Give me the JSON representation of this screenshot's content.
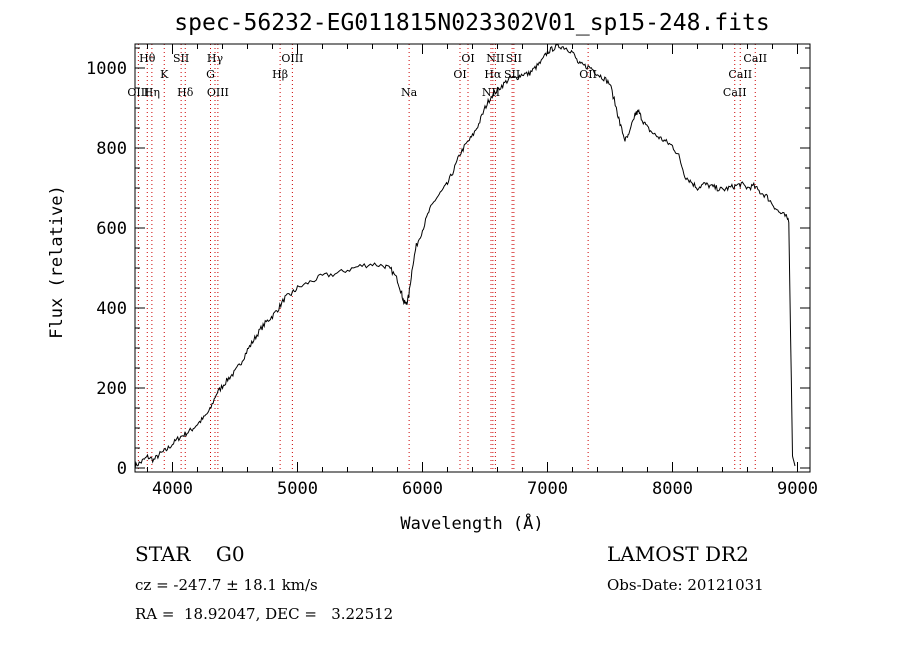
{
  "chart_data": {
    "type": "line",
    "title": "spec-56232-EG011815N023302V01_sp15-248.fits",
    "xlabel": "Wavelength (Å)",
    "ylabel": "Flux (relative)",
    "xlim": [
      3700,
      9100
    ],
    "ylim": [
      -10,
      1060
    ],
    "xticks": [
      4000,
      5000,
      6000,
      7000,
      8000,
      9000
    ],
    "yticks": [
      0,
      200,
      400,
      600,
      800,
      1000
    ],
    "grid": false,
    "series": [
      {
        "values": [
          [
            3700,
            5
          ],
          [
            3750,
            15
          ],
          [
            3800,
            28
          ],
          [
            3850,
            20
          ],
          [
            3900,
            35
          ],
          [
            3950,
            45
          ],
          [
            4000,
            60
          ],
          [
            4050,
            75
          ],
          [
            4100,
            85
          ],
          [
            4150,
            95
          ],
          [
            4200,
            110
          ],
          [
            4250,
            125
          ],
          [
            4300,
            145
          ],
          [
            4350,
            185
          ],
          [
            4400,
            205
          ],
          [
            4450,
            225
          ],
          [
            4500,
            240
          ],
          [
            4550,
            265
          ],
          [
            4600,
            295
          ],
          [
            4650,
            320
          ],
          [
            4700,
            345
          ],
          [
            4750,
            365
          ],
          [
            4800,
            380
          ],
          [
            4850,
            400
          ],
          [
            4900,
            425
          ],
          [
            4950,
            435
          ],
          [
            5000,
            450
          ],
          [
            5100,
            465
          ],
          [
            5200,
            480
          ],
          [
            5300,
            485
          ],
          [
            5400,
            495
          ],
          [
            5500,
            505
          ],
          [
            5600,
            510
          ],
          [
            5700,
            505
          ],
          [
            5750,
            495
          ],
          [
            5800,
            470
          ],
          [
            5830,
            440
          ],
          [
            5850,
            415
          ],
          [
            5870,
            410
          ],
          [
            5890,
            430
          ],
          [
            5920,
            505
          ],
          [
            5950,
            555
          ],
          [
            6000,
            595
          ],
          [
            6050,
            640
          ],
          [
            6100,
            670
          ],
          [
            6150,
            690
          ],
          [
            6200,
            710
          ],
          [
            6250,
            745
          ],
          [
            6300,
            785
          ],
          [
            6350,
            810
          ],
          [
            6400,
            830
          ],
          [
            6450,
            860
          ],
          [
            6500,
            900
          ],
          [
            6550,
            930
          ],
          [
            6600,
            945
          ],
          [
            6650,
            960
          ],
          [
            6700,
            975
          ],
          [
            6750,
            975
          ],
          [
            6800,
            985
          ],
          [
            6850,
            985
          ],
          [
            6900,
            1000
          ],
          [
            6950,
            1015
          ],
          [
            7000,
            1040
          ],
          [
            7050,
            1050
          ],
          [
            7100,
            1055
          ],
          [
            7150,
            1050
          ],
          [
            7200,
            1040
          ],
          [
            7250,
            1010
          ],
          [
            7300,
            1005
          ],
          [
            7350,
            1000
          ],
          [
            7400,
            985
          ],
          [
            7450,
            975
          ],
          [
            7500,
            960
          ],
          [
            7550,
            900
          ],
          [
            7580,
            860
          ],
          [
            7620,
            820
          ],
          [
            7650,
            830
          ],
          [
            7700,
            885
          ],
          [
            7730,
            890
          ],
          [
            7760,
            870
          ],
          [
            7800,
            850
          ],
          [
            7850,
            835
          ],
          [
            7900,
            825
          ],
          [
            7950,
            815
          ],
          [
            8000,
            805
          ],
          [
            8050,
            780
          ],
          [
            8100,
            730
          ],
          [
            8150,
            715
          ],
          [
            8200,
            700
          ],
          [
            8250,
            710
          ],
          [
            8300,
            705
          ],
          [
            8350,
            700
          ],
          [
            8400,
            695
          ],
          [
            8450,
            700
          ],
          [
            8500,
            705
          ],
          [
            8550,
            710
          ],
          [
            8600,
            700
          ],
          [
            8650,
            705
          ],
          [
            8700,
            690
          ],
          [
            8750,
            680
          ],
          [
            8800,
            660
          ],
          [
            8850,
            640
          ],
          [
            8900,
            630
          ],
          [
            8930,
            620
          ],
          [
            8960,
            30
          ],
          [
            8980,
            5
          ]
        ]
      }
    ],
    "line_markers": [
      {
        "label": "Hθ",
        "x": 3798,
        "row": 0
      },
      {
        "label": "SII",
        "x": 4069,
        "row": 0
      },
      {
        "label": "Hγ",
        "x": 4340,
        "row": 0
      },
      {
        "label": "OIII",
        "x": 4959,
        "row": 0
      },
      {
        "label": "OI",
        "x": 6364,
        "row": 0
      },
      {
        "label": "NII",
        "x": 6583,
        "row": 0
      },
      {
        "label": "SII",
        "x": 6731,
        "row": 0
      },
      {
        "label": "CaII",
        "x": 8662,
        "row": 0
      },
      {
        "label": "K",
        "x": 3934,
        "row": 1
      },
      {
        "label": "G",
        "x": 4304,
        "row": 1
      },
      {
        "label": "Hβ",
        "x": 4861,
        "row": 1
      },
      {
        "label": "OI",
        "x": 6300,
        "row": 1
      },
      {
        "label": "Hα",
        "x": 6563,
        "row": 1
      },
      {
        "label": "SII",
        "x": 6717,
        "row": 1
      },
      {
        "label": "OII",
        "x": 7325,
        "row": 1
      },
      {
        "label": "CaII",
        "x": 8542,
        "row": 1
      },
      {
        "label": "OIII",
        "x": 3727,
        "row": 2
      },
      {
        "label": "Hη",
        "x": 3835,
        "row": 2
      },
      {
        "label": "Hδ",
        "x": 4102,
        "row": 2
      },
      {
        "label": "OIII",
        "x": 4363,
        "row": 2
      },
      {
        "label": "Na",
        "x": 5893,
        "row": 2
      },
      {
        "label": "NII",
        "x": 6548,
        "row": 2
      },
      {
        "label": "CaII",
        "x": 8498,
        "row": 2
      }
    ],
    "marker_color": "#cc0000"
  },
  "info": {
    "object_class": "STAR    G0",
    "survey": "LAMOST DR2",
    "redshift": "cz = -247.7 ± 18.1 km/s",
    "obs_date": "Obs-Date: 20121031",
    "coords": "RA =  18.92047, DEC =   3.22512"
  }
}
